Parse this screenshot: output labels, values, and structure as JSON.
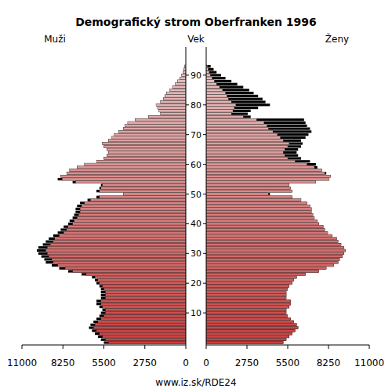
{
  "chart_data": {
    "type": "bar",
    "orientation": "horizontal",
    "title": "Demografický strom Oberfranken 1996",
    "y_label": "Vek",
    "source": "www.iz.sk/RDE24",
    "categories": [
      null,
      null,
      null,
      null,
      null,
      null,
      null,
      null,
      null,
      null,
      "10",
      null,
      null,
      null,
      null,
      null,
      null,
      null,
      null,
      null,
      "20",
      null,
      null,
      null,
      null,
      null,
      null,
      null,
      null,
      null,
      "30",
      null,
      null,
      null,
      null,
      null,
      null,
      null,
      null,
      null,
      "40",
      null,
      null,
      null,
      null,
      null,
      null,
      null,
      null,
      null,
      "50",
      null,
      null,
      null,
      null,
      null,
      null,
      null,
      null,
      null,
      "60",
      null,
      null,
      null,
      null,
      null,
      null,
      null,
      null,
      null,
      "70",
      null,
      null,
      null,
      null,
      null,
      null,
      null,
      null,
      null,
      "80",
      null,
      null,
      null,
      null,
      null,
      null,
      null,
      null,
      null,
      "90",
      null,
      null,
      null
    ],
    "xlim": [
      0,
      11000
    ],
    "xticks": [
      0,
      2750,
      5500,
      8250,
      11000
    ],
    "series": [
      {
        "name": "Muži",
        "color": "#e8c4c4",
        "values": [
          5500,
          5700,
          5900,
          6100,
          6300,
          6500,
          6400,
          6200,
          6000,
          5800,
          5700,
          5600,
          5800,
          6000,
          6000,
          5700,
          5700,
          5700,
          5700,
          5800,
          6000,
          6100,
          6300,
          7000,
          7900,
          8500,
          9000,
          9400,
          9500,
          9700,
          9900,
          10000,
          9900,
          9600,
          9400,
          9200,
          8900,
          8600,
          8400,
          8200,
          7900,
          7800,
          7600,
          7500,
          7400,
          7400,
          7300,
          7100,
          6600,
          6000,
          4200,
          6000,
          5800,
          5700,
          7600,
          8600,
          8400,
          8000,
          7800,
          7300,
          6800,
          6000,
          5500,
          5300,
          5200,
          5300,
          5500,
          5600,
          5200,
          5000,
          4800,
          4500,
          4200,
          4100,
          3900,
          3400,
          2500,
          1700,
          1800,
          1900,
          2000,
          1700,
          1500,
          1400,
          1300,
          1100,
          900,
          700,
          550,
          400,
          280,
          200,
          130,
          80
        ]
      },
      {
        "name": "Ženy",
        "color": "#e8c4c4",
        "values": [
          5200,
          5400,
          5600,
          5800,
          6000,
          6200,
          6100,
          5900,
          5700,
          5500,
          5400,
          5400,
          5600,
          5700,
          5700,
          5400,
          5400,
          5400,
          5500,
          5600,
          5800,
          5900,
          6100,
          6700,
          7600,
          8100,
          8600,
          8900,
          9000,
          9200,
          9300,
          9400,
          9300,
          9100,
          8900,
          8800,
          8500,
          8200,
          8000,
          7900,
          7600,
          7500,
          7300,
          7200,
          7100,
          7100,
          7000,
          6800,
          6400,
          5800,
          4300,
          5800,
          5700,
          5600,
          7400,
          8300,
          8400,
          8100,
          7800,
          7500,
          7400,
          7000,
          6400,
          6200,
          6100,
          6200,
          6400,
          6500,
          6400,
          6700,
          6900,
          7100,
          7000,
          6800,
          6700,
          6600,
          3000,
          2800,
          3000,
          3500,
          4300,
          4000,
          3800,
          3500,
          3200,
          2900,
          2500,
          2100,
          1700,
          1300,
          1000,
          700,
          500,
          300
        ]
      }
    ]
  }
}
